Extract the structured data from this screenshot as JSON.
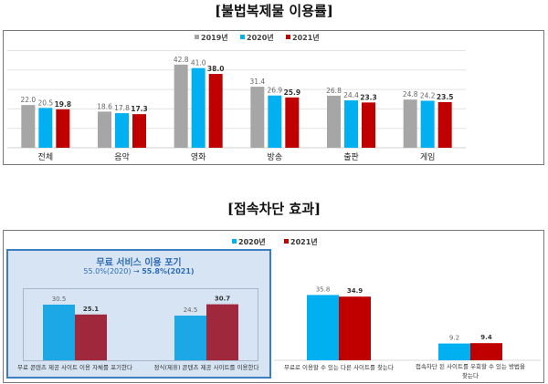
{
  "titles": {
    "top": "[불법복제물 이용률]",
    "bottom": "[접속차단 효과]"
  },
  "chart_data": [
    {
      "type": "bar",
      "title": "",
      "categories": [
        "전체",
        "음악",
        "영화",
        "방송",
        "출판",
        "게임"
      ],
      "series": [
        {
          "name": "2019년",
          "color": "#A6A6A6",
          "values": [
            22.0,
            18.6,
            42.8,
            31.4,
            26.8,
            24.8
          ]
        },
        {
          "name": "2020년",
          "color": "#00B0F0",
          "values": [
            20.5,
            17.8,
            41.0,
            26.9,
            24.4,
            24.2
          ]
        },
        {
          "name": "2021년",
          "color": "#C00000",
          "values": [
            19.8,
            17.3,
            38.0,
            25.9,
            23.3,
            23.5
          ]
        }
      ],
      "ylim": [
        0,
        50
      ],
      "grid": true,
      "legend": "top-center"
    },
    {
      "type": "bar",
      "title": "",
      "categories": [
        "무료 콘텐츠 제공 사이트 이용 자체를 포기한다",
        "정식(제휴) 콘텐츠 제공 사이트를 이용한다",
        "무료로 이용할 수 있는 다른 사이트를 찾는다",
        "접속차단 된 사이트를 우회할 수 있는 방법을 찾는다"
      ],
      "series": [
        {
          "name": "2020년",
          "color": "#1CA7E6",
          "values": [
            30.5,
            24.5,
            35.8,
            9.2
          ]
        },
        {
          "name": "2021년",
          "color": "#A0283C",
          "values": [
            25.1,
            30.7,
            34.9,
            9.4
          ]
        }
      ],
      "legend": "top-center",
      "annotation": {
        "title": "무료 서비스 이용 포기",
        "text_2020": "55.0%(2020)",
        "arrow": "→",
        "text_2021": "55.8%(2021)"
      }
    }
  ]
}
